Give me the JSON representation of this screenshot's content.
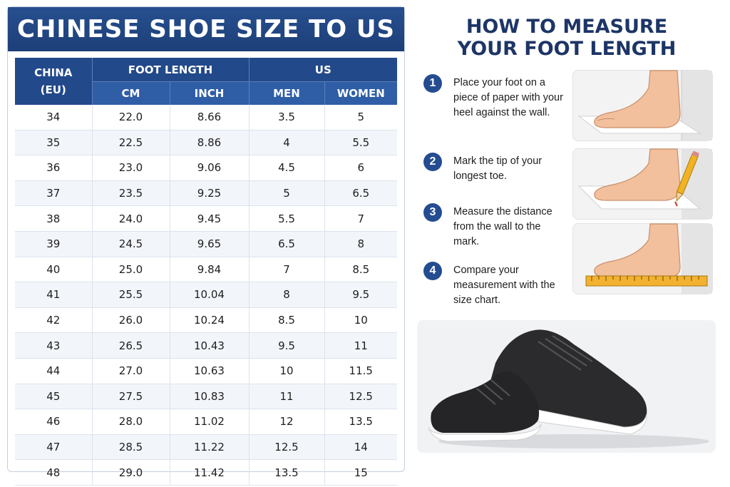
{
  "chart": {
    "title": "CHINESE SHOE SIZE TO US",
    "headers": {
      "china": "CHINA",
      "china_sub": "(EU)",
      "foot_length": "FOOT LENGTH",
      "us": "US",
      "cm": "CM",
      "inch": "INCH",
      "men": "MEN",
      "women": "WOMEN"
    },
    "rows": [
      [
        "34",
        "22.0",
        "8.66",
        "3.5",
        "5"
      ],
      [
        "35",
        "22.5",
        "8.86",
        "4",
        "5.5"
      ],
      [
        "36",
        "23.0",
        "9.06",
        "4.5",
        "6"
      ],
      [
        "37",
        "23.5",
        "9.25",
        "5",
        "6.5"
      ],
      [
        "38",
        "24.0",
        "9.45",
        "5.5",
        "7"
      ],
      [
        "39",
        "24.5",
        "9.65",
        "6.5",
        "8"
      ],
      [
        "40",
        "25.0",
        "9.84",
        "7",
        "8.5"
      ],
      [
        "41",
        "25.5",
        "10.04",
        "8",
        "9.5"
      ],
      [
        "42",
        "26.0",
        "10.24",
        "8.5",
        "10"
      ],
      [
        "43",
        "26.5",
        "10.43",
        "9.5",
        "11"
      ],
      [
        "44",
        "27.0",
        "10.63",
        "10",
        "11.5"
      ],
      [
        "45",
        "27.5",
        "10.83",
        "11",
        "12.5"
      ],
      [
        "46",
        "28.0",
        "11.02",
        "12",
        "13.5"
      ],
      [
        "47",
        "28.5",
        "11.22",
        "12.5",
        "14"
      ],
      [
        "48",
        "29.0",
        "11.42",
        "13.5",
        "15"
      ]
    ]
  },
  "guide": {
    "title_line1": "HOW TO MEASURE",
    "title_line2": "YOUR FOOT LENGTH",
    "steps": [
      {
        "num": "1",
        "text": "Place your foot on a piece of paper with your heel against the wall."
      },
      {
        "num": "2",
        "text": "Mark the tip of your longest toe."
      },
      {
        "num": "3",
        "text": "Measure the distance from the wall to the mark."
      },
      {
        "num": "4",
        "text": "Compare your measurement with the size chart."
      }
    ]
  },
  "colors": {
    "primary": "#22498a",
    "secondary": "#2f5ea6",
    "stripe": "#f2f5fa"
  },
  "icons": [
    "foot-on-paper-illustration",
    "pencil-mark-illustration",
    "ruler-illustration",
    "sneakers-photo"
  ]
}
